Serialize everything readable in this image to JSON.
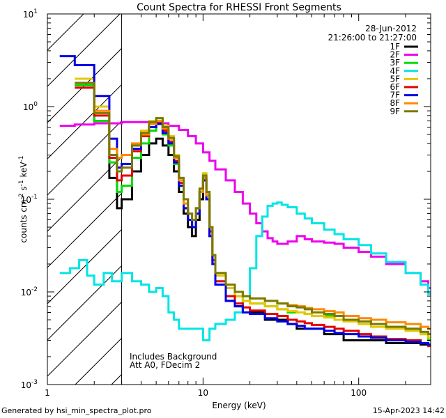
{
  "chart_data": {
    "type": "line",
    "title": "Count Spectra for RHESSI Front Segments",
    "xlabel": "Energy (keV)",
    "ylabel": "counts cm^-2 s^-1 keV^-1",
    "ylabel_parts": {
      "base": "counts cm",
      "e1": "-2",
      "s": " s",
      "e2": "-1",
      "kev": " keV",
      "e3": "-1"
    },
    "xscale": "log",
    "yscale": "log",
    "xlim": [
      1,
      290
    ],
    "ylim": [
      0.001,
      10
    ],
    "x_ticks": [
      {
        "value": 1,
        "label": "1"
      },
      {
        "value": 10,
        "label": "10"
      },
      {
        "value": 100,
        "label": "100"
      }
    ],
    "y_ticks": [
      {
        "value": 0.001,
        "base": "10",
        "exp": "-3"
      },
      {
        "value": 0.01,
        "base": "10",
        "exp": "-2"
      },
      {
        "value": 0.1,
        "base": "10",
        "exp": "-1"
      },
      {
        "value": 1,
        "base": "10",
        "exp": "0"
      },
      {
        "value": 10,
        "base": "10",
        "exp": "1"
      }
    ],
    "date": "28-Jun-2012",
    "time_range": "21:26:00 to 21:27:00",
    "note_lines": [
      "Includes Background",
      "Att A0, FDecim 2"
    ],
    "hatched_region": {
      "x_from": 1,
      "x_to": 3.0
    },
    "legend_position": "top-right",
    "series": [
      {
        "name": "1F",
        "color": "#000000",
        "x": [
          1.5,
          2.0,
          2.5,
          2.8,
          3.0,
          3.5,
          4.0,
          4.5,
          5.0,
          5.5,
          6.0,
          6.5,
          7.0,
          7.5,
          8.0,
          8.5,
          9.0,
          9.5,
          10.0,
          10.5,
          11.0,
          11.5,
          12,
          14,
          16,
          18,
          20,
          25,
          30,
          35,
          40,
          45,
          50,
          60,
          70,
          80,
          100,
          120,
          150,
          200,
          250,
          280
        ],
        "y": [
          1.7,
          0.7,
          0.17,
          0.08,
          0.1,
          0.2,
          0.3,
          0.4,
          0.45,
          0.38,
          0.3,
          0.2,
          0.12,
          0.07,
          0.05,
          0.04,
          0.06,
          0.1,
          0.17,
          0.1,
          0.04,
          0.02,
          0.012,
          0.008,
          0.007,
          0.006,
          0.006,
          0.005,
          0.005,
          0.0045,
          0.004,
          0.004,
          0.004,
          0.0035,
          0.0035,
          0.003,
          0.003,
          0.003,
          0.0028,
          0.0028,
          0.0027,
          0.0027
        ]
      },
      {
        "name": "2F",
        "color": "#ee00ee",
        "x": [
          1.2,
          1.5,
          2.0,
          3.0,
          4.0,
          5.0,
          6.0,
          7.0,
          8.0,
          9.0,
          10.0,
          11.0,
          12.0,
          14,
          16,
          18,
          20,
          22,
          24,
          26,
          28,
          30,
          35,
          40,
          45,
          50,
          60,
          70,
          80,
          100,
          120,
          150,
          200,
          250,
          280
        ],
        "y": [
          0.62,
          0.64,
          0.66,
          0.68,
          0.68,
          0.66,
          0.62,
          0.56,
          0.48,
          0.4,
          0.32,
          0.26,
          0.21,
          0.16,
          0.12,
          0.09,
          0.07,
          0.055,
          0.045,
          0.038,
          0.035,
          0.033,
          0.035,
          0.04,
          0.037,
          0.035,
          0.034,
          0.033,
          0.03,
          0.027,
          0.024,
          0.02,
          0.016,
          0.013,
          0.011
        ]
      },
      {
        "name": "3F",
        "color": "#00dd00",
        "x": [
          1.5,
          2.0,
          2.5,
          2.8,
          3.0,
          3.5,
          4.0,
          4.5,
          5.0,
          5.5,
          6.0,
          6.5,
          7.0,
          7.5,
          8.0,
          8.5,
          9.0,
          9.5,
          10.0,
          10.5,
          11.0,
          11.5,
          12,
          14,
          16,
          18,
          20,
          25,
          30,
          35,
          40,
          45,
          50,
          60,
          70,
          80,
          100,
          120,
          150,
          200,
          250,
          280
        ],
        "y": [
          1.7,
          0.7,
          0.25,
          0.12,
          0.14,
          0.28,
          0.4,
          0.55,
          0.65,
          0.5,
          0.38,
          0.24,
          0.14,
          0.08,
          0.06,
          0.05,
          0.07,
          0.12,
          0.19,
          0.12,
          0.05,
          0.025,
          0.016,
          0.011,
          0.009,
          0.008,
          0.0075,
          0.007,
          0.0065,
          0.006,
          0.006,
          0.0058,
          0.0055,
          0.0055,
          0.005,
          0.005,
          0.0048,
          0.0045,
          0.0042,
          0.004,
          0.0035,
          0.003
        ]
      },
      {
        "name": "4F",
        "color": "#00e5e5",
        "x": [
          1.2,
          1.4,
          1.6,
          1.8,
          2.0,
          2.3,
          2.6,
          3.0,
          3.5,
          4.0,
          4.5,
          5.0,
          5.5,
          6.0,
          6.5,
          7.0,
          8.0,
          9.0,
          10.0,
          11.0,
          12.0,
          14,
          16,
          18,
          20,
          22,
          24,
          26,
          28,
          30,
          32,
          35,
          40,
          45,
          50,
          60,
          70,
          80,
          100,
          120,
          150,
          200,
          250,
          280
        ],
        "y": [
          0.016,
          0.018,
          0.022,
          0.015,
          0.012,
          0.016,
          0.013,
          0.016,
          0.013,
          0.012,
          0.01,
          0.011,
          0.009,
          0.006,
          0.005,
          0.004,
          0.004,
          0.004,
          0.003,
          0.004,
          0.0045,
          0.005,
          0.006,
          0.009,
          0.018,
          0.04,
          0.065,
          0.085,
          0.09,
          0.092,
          0.087,
          0.082,
          0.07,
          0.062,
          0.055,
          0.047,
          0.042,
          0.037,
          0.032,
          0.026,
          0.021,
          0.016,
          0.012,
          0.0095
        ]
      },
      {
        "name": "5F",
        "color": "#e5c800",
        "x": [
          1.5,
          2.0,
          2.5,
          2.8,
          3.0,
          3.5,
          4.0,
          4.5,
          5.0,
          5.5,
          6.0,
          6.5,
          7.0,
          7.5,
          8.0,
          8.5,
          9.0,
          9.5,
          10.0,
          10.5,
          11.0,
          11.5,
          12,
          14,
          16,
          18,
          20,
          25,
          30,
          35,
          40,
          45,
          50,
          60,
          70,
          80,
          100,
          120,
          150,
          200,
          250,
          280
        ],
        "y": [
          2.0,
          1.0,
          0.3,
          0.2,
          0.22,
          0.38,
          0.55,
          0.7,
          0.75,
          0.62,
          0.48,
          0.3,
          0.17,
          0.1,
          0.07,
          0.06,
          0.08,
          0.13,
          0.19,
          0.12,
          0.05,
          0.025,
          0.015,
          0.011,
          0.009,
          0.008,
          0.0075,
          0.007,
          0.0065,
          0.0062,
          0.006,
          0.0058,
          0.0055,
          0.0053,
          0.005,
          0.0048,
          0.0045,
          0.0042,
          0.004,
          0.0038,
          0.0035,
          0.0032
        ]
      },
      {
        "name": "6F",
        "color": "#e50000",
        "x": [
          1.5,
          2.0,
          2.5,
          2.8,
          3.0,
          3.5,
          4.0,
          4.5,
          5.0,
          5.5,
          6.0,
          6.5,
          7.0,
          7.5,
          8.0,
          8.5,
          9.0,
          9.5,
          10.0,
          10.5,
          11.0,
          11.5,
          12,
          14,
          16,
          18,
          20,
          25,
          30,
          35,
          40,
          45,
          50,
          60,
          70,
          80,
          100,
          120,
          150,
          200,
          250,
          280
        ],
        "y": [
          1.6,
          0.8,
          0.28,
          0.16,
          0.18,
          0.33,
          0.48,
          0.6,
          0.68,
          0.55,
          0.42,
          0.26,
          0.15,
          0.08,
          0.06,
          0.05,
          0.07,
          0.12,
          0.16,
          0.11,
          0.045,
          0.022,
          0.013,
          0.009,
          0.0075,
          0.0068,
          0.0063,
          0.0058,
          0.0055,
          0.005,
          0.0048,
          0.0046,
          0.0044,
          0.0042,
          0.004,
          0.0038,
          0.0035,
          0.0033,
          0.0031,
          0.003,
          0.0028,
          0.0026
        ]
      },
      {
        "name": "7F",
        "color": "#0000e5",
        "x": [
          1.2,
          1.5,
          2.0,
          2.5,
          2.8,
          3.0,
          3.5,
          4.0,
          4.5,
          5.0,
          5.5,
          6.0,
          6.5,
          7.0,
          7.5,
          8.0,
          8.5,
          9.0,
          9.5,
          10.0,
          10.5,
          11.0,
          11.5,
          12,
          14,
          16,
          18,
          20,
          25,
          30,
          35,
          40,
          45,
          50,
          60,
          70,
          80,
          100,
          120,
          150,
          200,
          250,
          280
        ],
        "y": [
          3.5,
          2.8,
          1.3,
          0.45,
          0.22,
          0.24,
          0.35,
          0.5,
          0.6,
          0.65,
          0.52,
          0.4,
          0.25,
          0.14,
          0.08,
          0.06,
          0.05,
          0.07,
          0.12,
          0.16,
          0.1,
          0.04,
          0.02,
          0.012,
          0.008,
          0.007,
          0.006,
          0.0058,
          0.0052,
          0.0048,
          0.0045,
          0.0043,
          0.004,
          0.004,
          0.0038,
          0.0036,
          0.0035,
          0.0033,
          0.0032,
          0.003,
          0.0029,
          0.0028,
          0.0027
        ]
      },
      {
        "name": "8F",
        "color": "#ff8800",
        "x": [
          1.5,
          2.0,
          2.5,
          2.8,
          3.0,
          3.5,
          4.0,
          4.5,
          5.0,
          5.5,
          6.0,
          6.5,
          7.0,
          7.5,
          8.0,
          8.5,
          9.0,
          9.5,
          10.0,
          10.5,
          11.0,
          11.5,
          12,
          14,
          16,
          18,
          20,
          25,
          30,
          35,
          40,
          45,
          50,
          60,
          70,
          80,
          100,
          120,
          150,
          200,
          250,
          280
        ],
        "y": [
          1.8,
          0.9,
          0.35,
          0.28,
          0.3,
          0.4,
          0.5,
          0.65,
          0.7,
          0.58,
          0.45,
          0.28,
          0.16,
          0.09,
          0.07,
          0.06,
          0.08,
          0.12,
          0.17,
          0.11,
          0.05,
          0.025,
          0.016,
          0.012,
          0.01,
          0.009,
          0.0085,
          0.008,
          0.0075,
          0.0072,
          0.007,
          0.0067,
          0.0065,
          0.0062,
          0.006,
          0.0055,
          0.0052,
          0.005,
          0.0047,
          0.0045,
          0.0042,
          0.004
        ]
      },
      {
        "name": "9F",
        "color": "#7a7a00",
        "x": [
          1.5,
          2.0,
          2.5,
          2.8,
          3.0,
          3.5,
          4.0,
          4.5,
          5.0,
          5.5,
          6.0,
          6.5,
          7.0,
          7.5,
          8.0,
          8.5,
          9.0,
          9.5,
          10.0,
          10.5,
          11.0,
          11.5,
          12,
          14,
          16,
          18,
          20,
          25,
          30,
          35,
          40,
          45,
          50,
          60,
          70,
          80,
          100,
          120,
          150,
          200,
          250,
          280
        ],
        "y": [
          1.8,
          0.85,
          0.3,
          0.2,
          0.22,
          0.38,
          0.52,
          0.68,
          0.75,
          0.6,
          0.46,
          0.29,
          0.17,
          0.1,
          0.07,
          0.06,
          0.08,
          0.13,
          0.18,
          0.12,
          0.05,
          0.025,
          0.016,
          0.012,
          0.01,
          0.009,
          0.0085,
          0.008,
          0.0075,
          0.007,
          0.0068,
          0.0065,
          0.006,
          0.0058,
          0.0055,
          0.005,
          0.0048,
          0.0045,
          0.0042,
          0.004,
          0.0037,
          0.0035
        ]
      }
    ]
  },
  "footer": {
    "generator": "Generated by hsi_min_spectra_plot.pro",
    "timestamp": "15-Apr-2023 14:42"
  }
}
